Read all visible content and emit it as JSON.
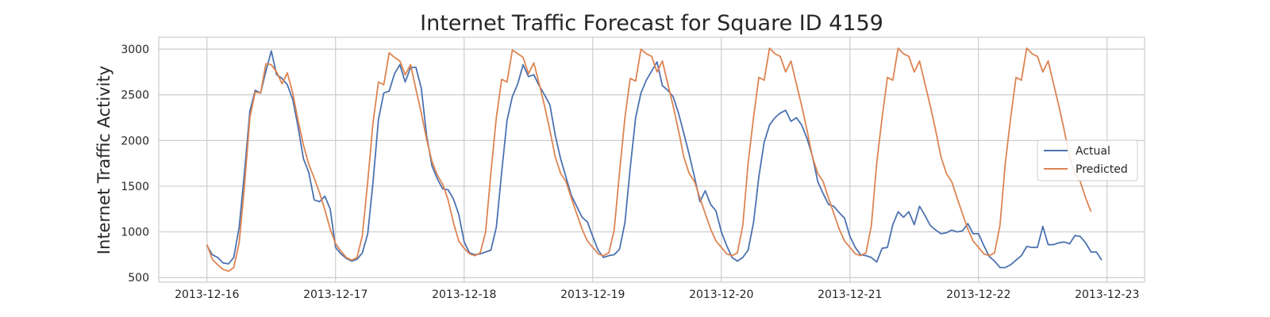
{
  "chart_data": {
    "type": "line",
    "title": "Internet Traffic Forecast for Square ID 4159",
    "xlabel": "",
    "ylabel": "Internet Traffic Activity",
    "x_start": "2013-12-16 00:00",
    "x_step_hours": 1,
    "x_ticks": [
      "2013-12-16",
      "2013-12-17",
      "2013-12-18",
      "2013-12-19",
      "2013-12-20",
      "2013-12-21",
      "2013-12-22",
      "2013-12-23"
    ],
    "y_ticks": [
      500,
      1000,
      1500,
      2000,
      2500,
      3000
    ],
    "xlim": [
      "2013-12-15 15:00",
      "2013-12-23 07:00"
    ],
    "ylim": [
      450,
      3130
    ],
    "grid": true,
    "legend_position": "right",
    "series": [
      {
        "name": "Actual",
        "color": "#4c72b0",
        "values": [
          850,
          750,
          720,
          660,
          650,
          720,
          1050,
          1650,
          2320,
          2550,
          2520,
          2760,
          2980,
          2720,
          2680,
          2610,
          2450,
          2150,
          1800,
          1650,
          1350,
          1330,
          1390,
          1250,
          830,
          760,
          710,
          680,
          700,
          770,
          980,
          1550,
          2230,
          2520,
          2540,
          2730,
          2830,
          2640,
          2800,
          2800,
          2570,
          2050,
          1720,
          1580,
          1470,
          1460,
          1360,
          1190,
          890,
          770,
          750,
          760,
          780,
          800,
          1050,
          1650,
          2220,
          2480,
          2620,
          2830,
          2700,
          2720,
          2600,
          2500,
          2390,
          2060,
          1800,
          1600,
          1400,
          1280,
          1160,
          1110,
          950,
          800,
          720,
          740,
          750,
          810,
          1100,
          1700,
          2250,
          2520,
          2660,
          2760,
          2860,
          2600,
          2550,
          2480,
          2300,
          2080,
          1850,
          1600,
          1330,
          1450,
          1300,
          1230,
          1000,
          850,
          720,
          680,
          720,
          800,
          1100,
          1600,
          1980,
          2170,
          2250,
          2300,
          2330,
          2210,
          2250,
          2170,
          2020,
          1830,
          1550,
          1420,
          1300,
          1280,
          1210,
          1150,
          950,
          830,
          750,
          740,
          720,
          670,
          820,
          830,
          1080,
          1220,
          1160,
          1220,
          1080,
          1280,
          1180,
          1070,
          1020,
          980,
          990,
          1020,
          1000,
          1010,
          1090,
          980,
          980,
          850,
          730,
          680,
          610,
          610,
          640,
          690,
          740,
          840,
          830,
          830,
          1060,
          860,
          860,
          880,
          890,
          870,
          960,
          950,
          880,
          780,
          780,
          690
        ]
      },
      {
        "name": "Predicted",
        "color": "#dd8452",
        "values": [
          860,
          700,
          640,
          590,
          570,
          610,
          880,
          1500,
          2250,
          2530,
          2520,
          2840,
          2830,
          2750,
          2620,
          2740,
          2520,
          2220,
          1950,
          1740,
          1590,
          1430,
          1240,
          1030,
          870,
          790,
          720,
          690,
          720,
          960,
          1550,
          2200,
          2640,
          2610,
          2960,
          2910,
          2870,
          2720,
          2830,
          2560,
          2300,
          2010,
          1770,
          1620,
          1520,
          1350,
          1100,
          900,
          820,
          760,
          740,
          770,
          1000,
          1650,
          2250,
          2670,
          2640,
          2990,
          2950,
          2910,
          2730,
          2850,
          2620,
          2380,
          2110,
          1820,
          1640,
          1550,
          1370,
          1200,
          1030,
          900,
          830,
          760,
          740,
          770,
          1020,
          1650,
          2250,
          2680,
          2650,
          3000,
          2950,
          2920,
          2750,
          2870,
          2620,
          2380,
          2110,
          1820,
          1640,
          1550,
          1370,
          1200,
          1030,
          900,
          830,
          760,
          740,
          770,
          1070,
          1750,
          2250,
          2690,
          2660,
          3010,
          2950,
          2920,
          2750,
          2870,
          2620,
          2380,
          2110,
          1820,
          1640,
          1550,
          1370,
          1200,
          1030,
          900,
          830,
          760,
          740,
          770,
          1070,
          1750,
          2250,
          2690,
          2660,
          3010,
          2950,
          2920,
          2750,
          2870,
          2620,
          2380,
          2110,
          1820,
          1640,
          1550,
          1370,
          1200,
          1030,
          900,
          830,
          760,
          740,
          770,
          1070,
          1750,
          2250,
          2690,
          2660,
          3010,
          2950,
          2920,
          2750,
          2870,
          2620,
          2380,
          2110,
          1820,
          1640,
          1550,
          1370,
          1220
        ]
      }
    ]
  }
}
